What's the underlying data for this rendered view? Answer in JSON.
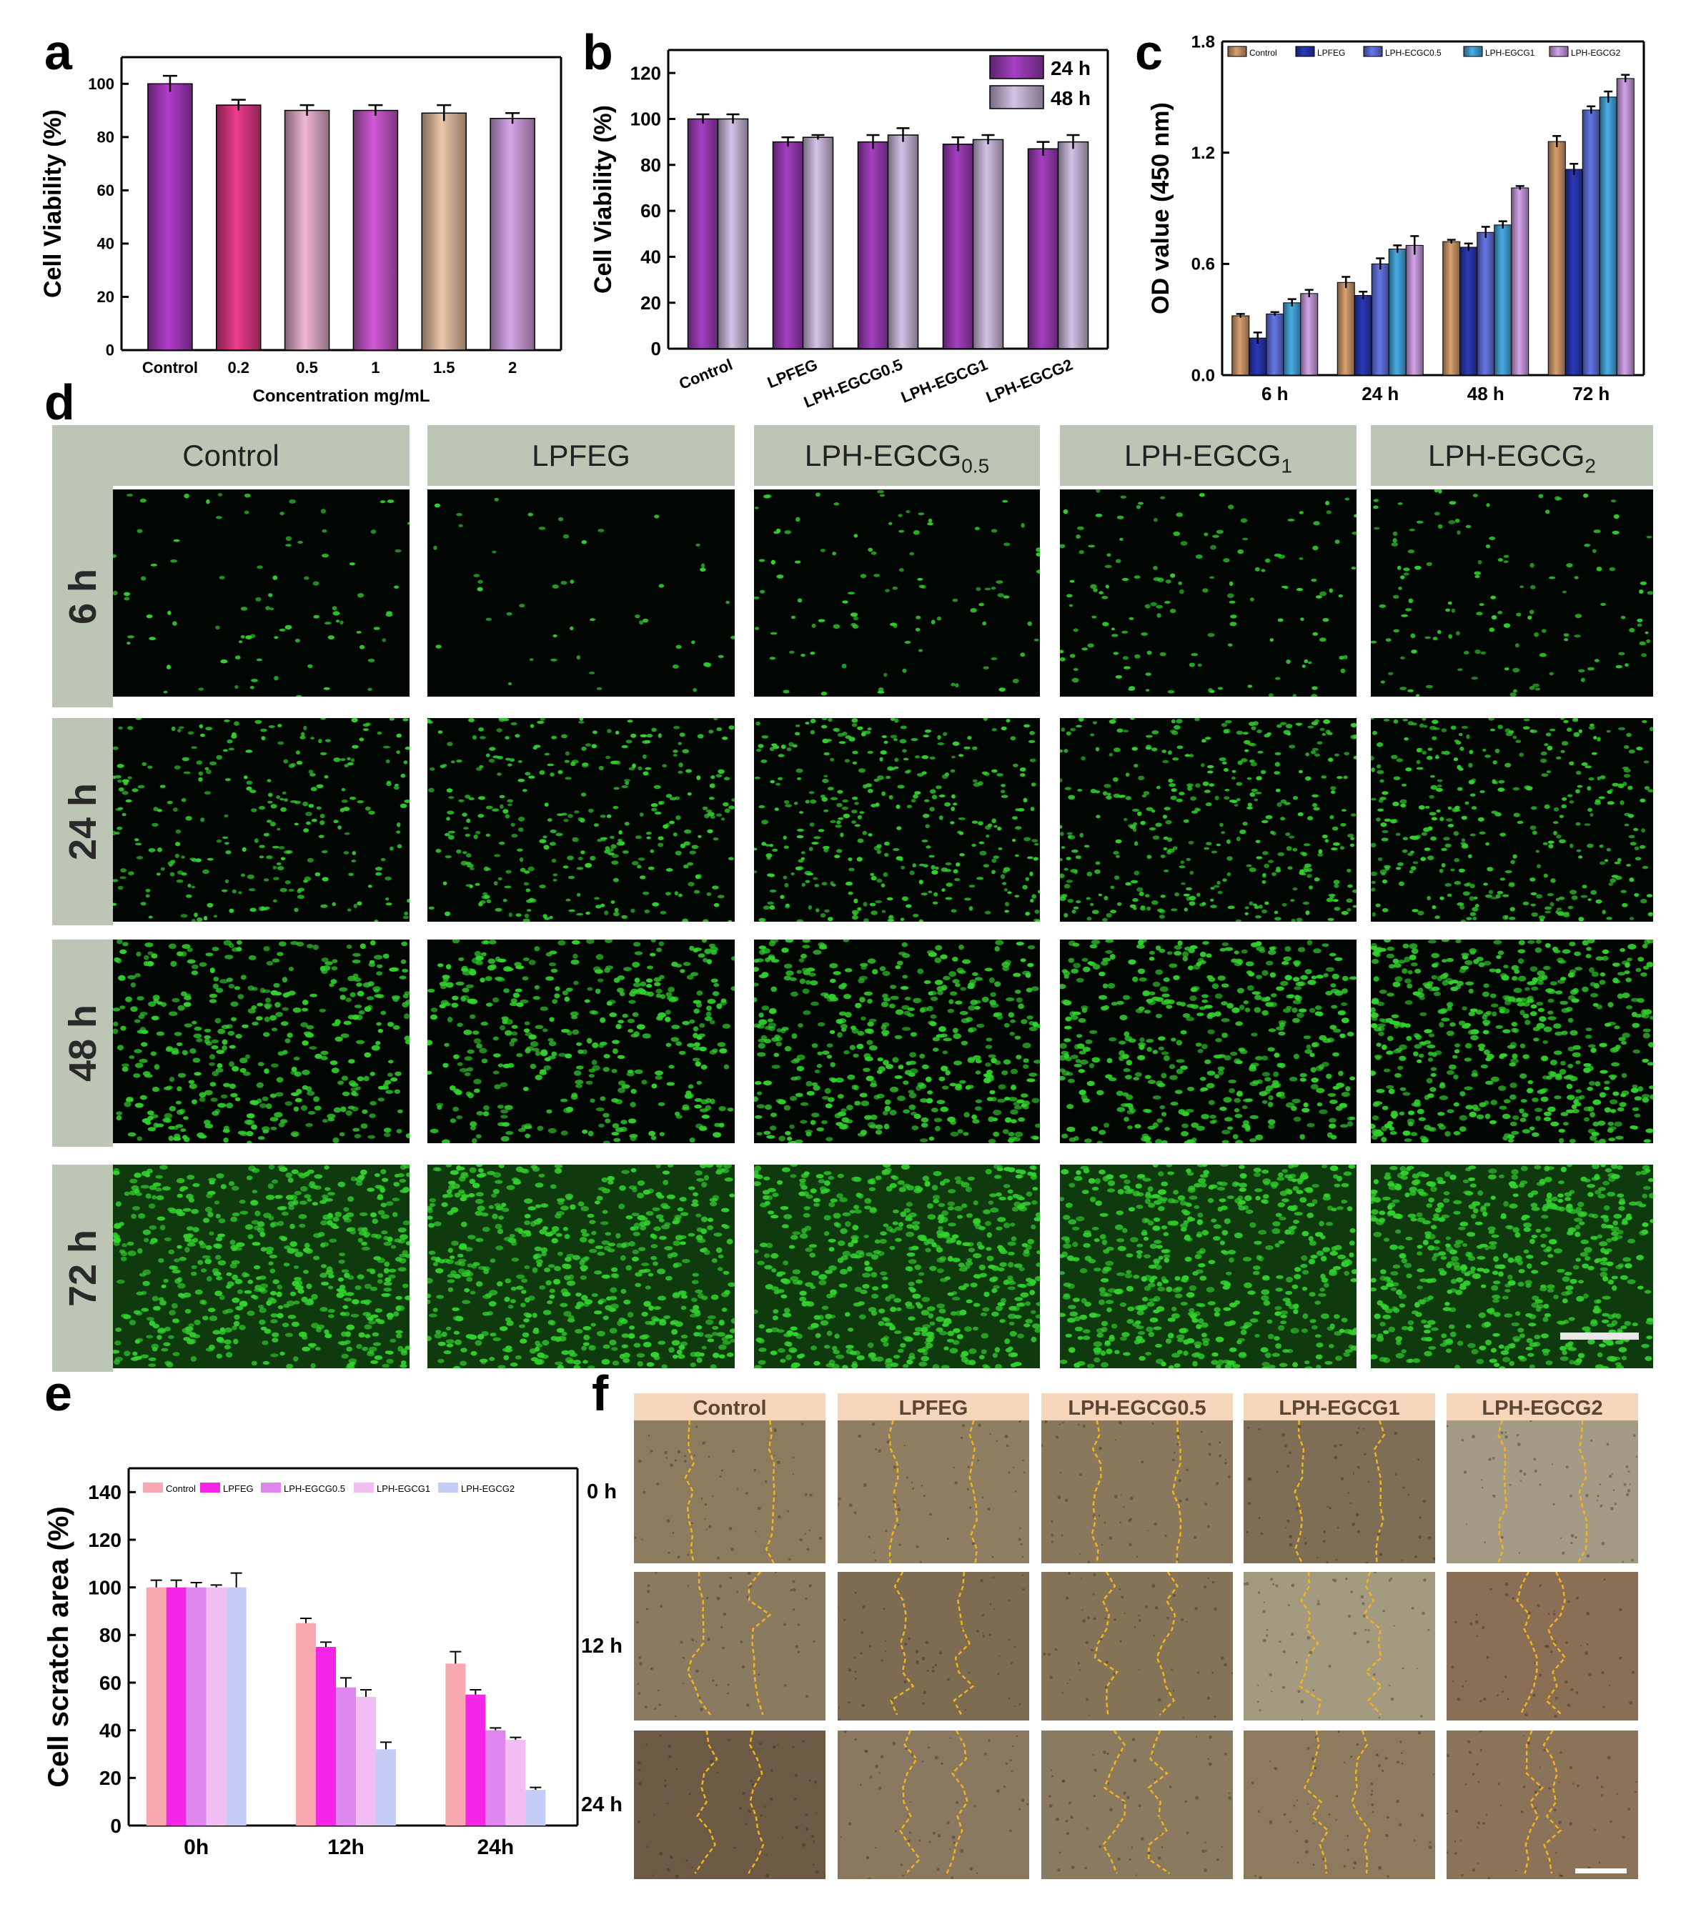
{
  "panel_labels": {
    "a": "a",
    "b": "b",
    "c": "c",
    "d": "d",
    "e": "e",
    "f": "f"
  },
  "colors": {
    "control_purple": "#b23cc9",
    "pink": "#ef3c8e",
    "light_pink": "#efb6d4",
    "orchid": "#d25ad6",
    "peach": "#ecc7a9",
    "lavender": "#d9a7ea",
    "b_24h": "#a63fc2",
    "b_48h": "#d5c2e6",
    "c_control": "#d9a06e",
    "c_lpfeg": "#2a39b8",
    "c_lph05": "#6577e8",
    "c_lph1": "#49aee6",
    "c_lph2": "#d4a3ea",
    "e_control": "#f8a8b0",
    "e_lpfeg": "#f525e8",
    "e_lph05": "#df86ef",
    "e_lph1": "#f1bdf3",
    "e_lph2": "#c3cdf6",
    "fluor_green": "#32d22e",
    "micro_header": "#bdc6b5",
    "scratch_header": "#f6d6bb",
    "wound_line": "#f2b31c"
  },
  "chart_data": [
    {
      "panel": "a",
      "type": "bar",
      "categories": [
        "Control",
        "0.2",
        "0.5",
        "1",
        "1.5",
        "2"
      ],
      "values": [
        100,
        92,
        90,
        90,
        89,
        87
      ],
      "errors": [
        3,
        2,
        2,
        2,
        3,
        2
      ],
      "xlabel": "Concentration mg/mL",
      "ylabel": "Cell Viability (%)",
      "ylim": [
        0,
        110
      ],
      "yticks": [
        "0",
        "20",
        "40",
        "60",
        "80",
        "100"
      ],
      "grid": false
    },
    {
      "panel": "b",
      "type": "bar",
      "categories": [
        "Control",
        "LPFEG",
        "LPH-EGCG0.5",
        "LPH-EGCG1",
        "LPH-EGCG2"
      ],
      "series": [
        {
          "name": "24 h",
          "values": [
            100,
            90,
            90,
            89,
            87
          ],
          "errors": [
            2,
            2,
            3,
            3,
            3
          ]
        },
        {
          "name": "48 h",
          "values": [
            100,
            92,
            93,
            91,
            90
          ],
          "errors": [
            2,
            1,
            3,
            2,
            3
          ]
        }
      ],
      "xlabel": "",
      "ylabel": "Cell Viability (%)",
      "ylim": [
        0,
        130
      ],
      "yticks": [
        "0",
        "20",
        "40",
        "60",
        "80",
        "100",
        "120"
      ],
      "legend": "top-right",
      "grid": false
    },
    {
      "panel": "c",
      "type": "bar",
      "categories": [
        "6 h",
        "24 h",
        "48 h",
        "72 h"
      ],
      "series": [
        {
          "name": "Control",
          "values": [
            0.32,
            0.5,
            0.72,
            1.26
          ],
          "errors": [
            0.01,
            0.03,
            0.01,
            0.03
          ]
        },
        {
          "name": "LPFEG",
          "values": [
            0.2,
            0.43,
            0.69,
            1.11
          ],
          "errors": [
            0.03,
            0.02,
            0.02,
            0.03
          ]
        },
        {
          "name": "LPH-ECGC0.5",
          "values": [
            0.33,
            0.6,
            0.77,
            1.43
          ],
          "errors": [
            0.01,
            0.03,
            0.03,
            0.02
          ]
        },
        {
          "name": "LPH-EGCG1",
          "values": [
            0.39,
            0.68,
            0.81,
            1.5
          ],
          "errors": [
            0.02,
            0.02,
            0.02,
            0.03
          ]
        },
        {
          "name": "LPH-EGCG2",
          "values": [
            0.44,
            0.7,
            1.01,
            1.6
          ],
          "errors": [
            0.02,
            0.05,
            0.01,
            0.02
          ]
        }
      ],
      "xlabel": "",
      "ylabel": "OD value (450 nm)",
      "ylim": [
        0,
        1.8
      ],
      "yticks": [
        "0.0",
        "0.6",
        "1.2",
        "1.8"
      ],
      "legend": "top",
      "grid": false
    },
    {
      "panel": "e",
      "type": "bar",
      "categories": [
        "0h",
        "12h",
        "24h"
      ],
      "series": [
        {
          "name": "Control",
          "values": [
            100,
            85,
            68
          ],
          "errors": [
            3,
            2,
            5
          ]
        },
        {
          "name": "LPFEG",
          "values": [
            100,
            75,
            55
          ],
          "errors": [
            3,
            2,
            2
          ]
        },
        {
          "name": "LPH-EGCG0.5",
          "values": [
            100,
            58,
            40
          ],
          "errors": [
            2,
            4,
            1
          ]
        },
        {
          "name": "LPH-EGCG1",
          "values": [
            100,
            54,
            36
          ],
          "errors": [
            1,
            3,
            1
          ]
        },
        {
          "name": "LPH-EGCG2",
          "values": [
            100,
            32,
            15
          ],
          "errors": [
            6,
            3,
            1
          ]
        }
      ],
      "xlabel": "",
      "ylabel": "Cell scratch area (%)",
      "ylim": [
        0,
        150
      ],
      "yticks": [
        "0",
        "20",
        "40",
        "60",
        "80",
        "100",
        "120",
        "140"
      ],
      "legend": "top",
      "grid": false
    }
  ],
  "micrographs": {
    "columns": [
      {
        "main": "Control",
        "sub": ""
      },
      {
        "main": "LPFEG",
        "sub": ""
      },
      {
        "main": "LPH-EGCG",
        "sub": "0.5"
      },
      {
        "main": "LPH-EGCG",
        "sub": "1"
      },
      {
        "main": "LPH-EGCG",
        "sub": "2"
      }
    ],
    "rows": [
      "6 h",
      "24 h",
      "48 h",
      "72 h"
    ],
    "relative_cell_density": [
      [
        0.12,
        0.05,
        0.14,
        0.22,
        0.2
      ],
      [
        0.45,
        0.55,
        0.6,
        0.65,
        0.62
      ],
      [
        0.72,
        0.7,
        0.8,
        0.82,
        0.95
      ],
      [
        1.0,
        1.0,
        1.0,
        1.0,
        1.0
      ]
    ]
  },
  "scratch": {
    "columns": [
      "Control",
      "LPFEG",
      "LPH-EGCG0.5",
      "LPH-EGCG1",
      "LPH-EGCG2"
    ],
    "rows": [
      "0 h",
      "12 h",
      "24 h"
    ],
    "tile_tones": [
      [
        "#8d7b5e",
        "#8f7e62",
        "#8a785d",
        "#7e6e55",
        "#a59a85"
      ],
      [
        "#8a7a60",
        "#7d6c52",
        "#857358",
        "#a39a80",
        "#8a6f55"
      ],
      [
        "#6d5b46",
        "#8a7960",
        "#8a7a60",
        "#8d7a5f",
        "#8a7358"
      ]
    ]
  }
}
